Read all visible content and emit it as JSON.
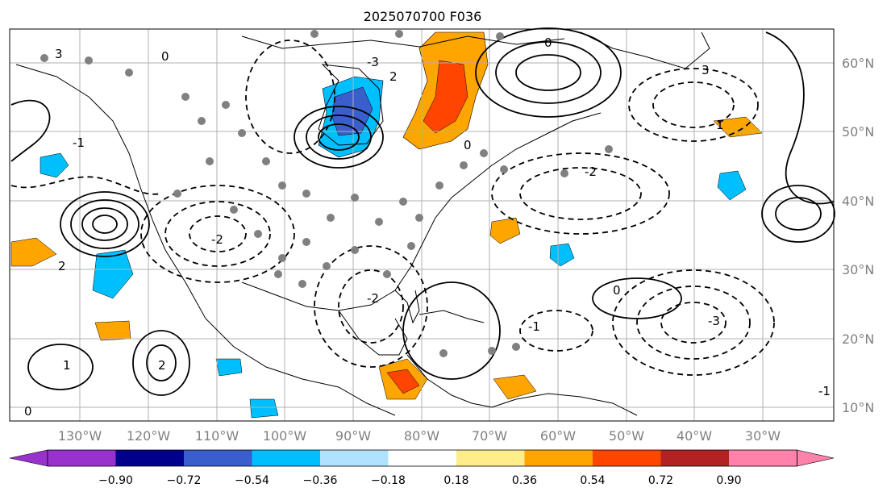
{
  "title": "2025070700 F036",
  "map": {
    "lat_labels": [
      "60°N",
      "50°N",
      "40°N",
      "30°N",
      "20°N",
      "10°N"
    ],
    "lon_labels": [
      "130°W",
      "120°W",
      "110°W",
      "100°W",
      "90°W",
      "80°W",
      "70°W",
      "60°W",
      "50°W",
      "40°W",
      "30°W"
    ],
    "contour_labels": [
      "3",
      "2",
      "0",
      "-1",
      "-2",
      "-3",
      "1",
      "2",
      "0",
      "-2",
      "1",
      "-3",
      "2",
      "0",
      "-1",
      "0",
      "-2",
      "3",
      "-1",
      "0"
    ]
  },
  "colorbar": {
    "tick_labels": [
      "−0.90",
      "−0.72",
      "−0.54",
      "−0.36",
      "−0.18",
      "0.18",
      "0.36",
      "0.54",
      "0.72",
      "0.90"
    ],
    "colors": {
      "under": "#9932cc",
      "bins": [
        "#9932cc",
        "#00008b",
        "#3a5fcd",
        "#00bfff",
        "#b0e2ff",
        "#ffffff",
        "#ffec8b",
        "#ffa500",
        "#ff4500",
        "#b22222"
      ],
      "over": "#ff82ab"
    }
  }
}
